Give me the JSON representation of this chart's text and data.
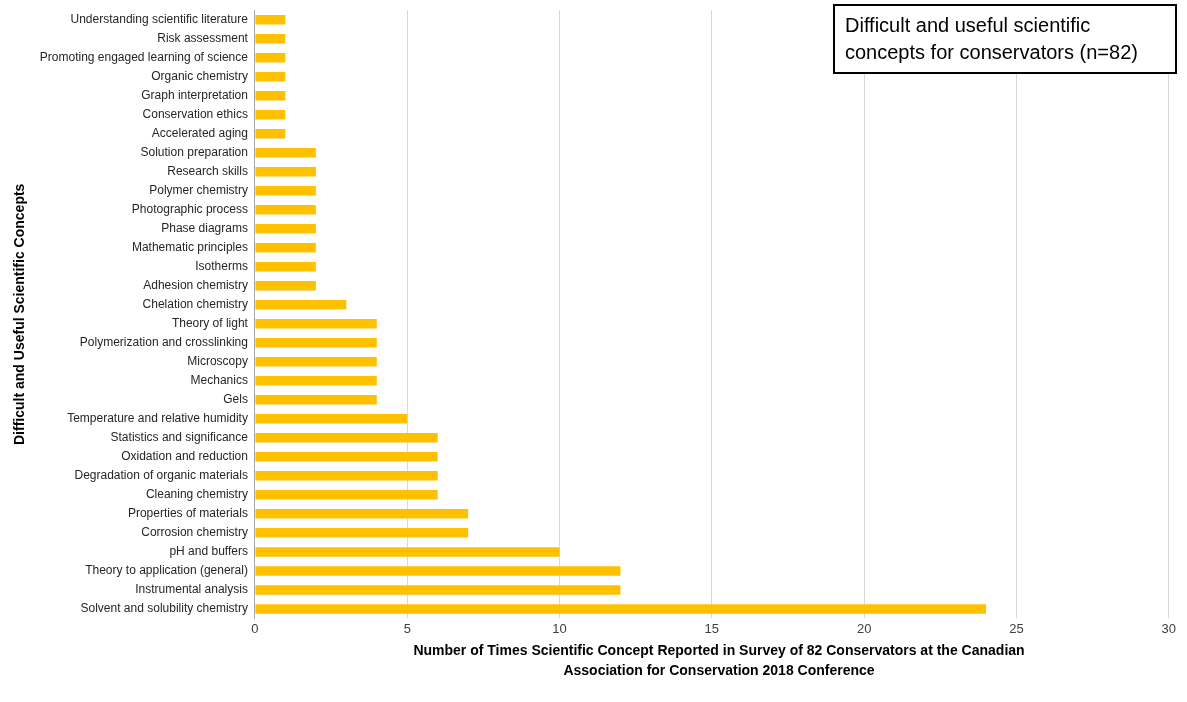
{
  "chart_data": {
    "type": "bar",
    "orientation": "horizontal",
    "title": "Difficult and useful scientific concepts for conservators (n=82)",
    "xlabel": "Number of Times Scientific Concept Reported in Survey of 82 Conservators at the Canadian Association for Conservation 2018 Conference",
    "ylabel": "Difficult and Useful Scientific Concepts",
    "categories": [
      "Understanding scientific literature",
      "Risk assessment",
      "Promoting engaged learning of science",
      "Organic chemistry",
      "Graph interpretation",
      "Conservation ethics",
      "Accelerated aging",
      "Solution preparation",
      "Research skills",
      "Polymer chemistry",
      "Photographic process",
      "Phase diagrams",
      "Mathematic principles",
      "Isotherms",
      "Adhesion chemistry",
      "Chelation chemistry",
      "Theory of light",
      "Polymerization and crosslinking",
      "Microscopy",
      "Mechanics",
      "Gels",
      "Temperature and relative humidity",
      "Statistics and significance",
      "Oxidation and reduction",
      "Degradation of organic materials",
      "Cleaning chemistry",
      "Properties of materials",
      "Corrosion chemistry",
      "pH and buffers",
      "Theory to application (general)",
      "Instrumental analysis",
      "Solvent and solubility chemistry"
    ],
    "values": [
      1,
      1,
      1,
      1,
      1,
      1,
      1,
      2,
      2,
      2,
      2,
      2,
      2,
      2,
      2,
      3,
      4,
      4,
      4,
      4,
      4,
      5,
      6,
      6,
      6,
      6,
      7,
      7,
      10,
      12,
      12,
      24
    ],
    "color": "#ffc000",
    "xlim": [
      0,
      30
    ],
    "xticks": [
      0,
      5,
      10,
      15,
      20,
      25,
      30
    ],
    "grid": "x",
    "legend": false
  }
}
